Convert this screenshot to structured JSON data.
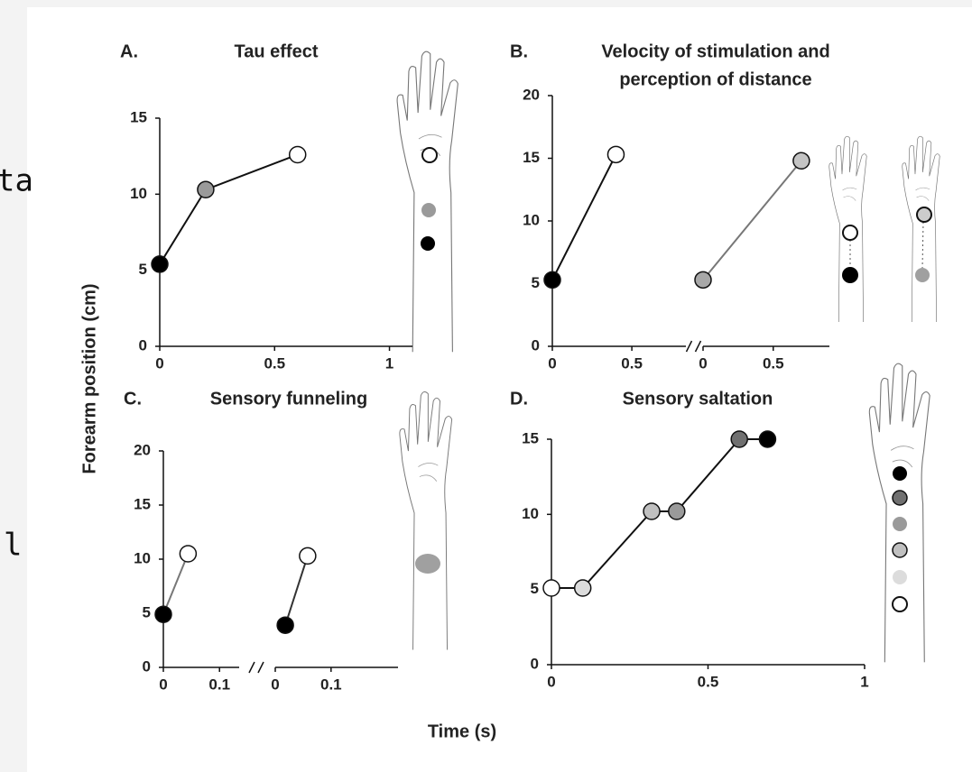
{
  "background_text": [
    "ta",
    "l"
  ],
  "shared": {
    "ylabel": "Forearm position (cm)",
    "xlabel": "Time (s)"
  },
  "chart_data": [
    {
      "type": "line",
      "label": "A.",
      "title": "Tau effect",
      "ylim": [
        0,
        15
      ],
      "yticks": [
        0,
        5,
        10,
        15
      ],
      "xlim": [
        0,
        1.1
      ],
      "xticks": [
        0,
        0.5,
        1
      ],
      "series": [
        {
          "color": "#111111",
          "x": [
            0,
            0.2,
            0.6
          ],
          "values": [
            5.4,
            10.3,
            12.6
          ],
          "marker_colors": [
            "#000000",
            "#9a9a9a",
            "#ffffff"
          ]
        }
      ]
    },
    {
      "type": "line",
      "label": "B.",
      "title_lines": [
        "Velocity of stimulation and",
        "perception of distance"
      ],
      "ylim": [
        0,
        20
      ],
      "yticks": [
        0,
        5,
        10,
        15,
        20
      ],
      "segments": [
        {
          "xlim": [
            0,
            0.84
          ],
          "xticks": [
            0,
            0.5
          ],
          "series": [
            {
              "color": "#111111",
              "x": [
                0,
                0.4
              ],
              "values": [
                5.3,
                15.3
              ],
              "marker_colors": [
                "#000000",
                "#ffffff"
              ]
            }
          ]
        },
        {
          "xlim": [
            0,
            0.9
          ],
          "xticks": [
            0,
            0.5
          ],
          "series": [
            {
              "color": "#777777",
              "x": [
                0,
                0.7
              ],
              "values": [
                5.3,
                14.8
              ],
              "marker_colors": [
                "#a8a8a8",
                "#c4c4c4"
              ]
            }
          ]
        }
      ]
    },
    {
      "type": "line",
      "label": "C.",
      "title": "Sensory funneling",
      "ylim": [
        0,
        20
      ],
      "yticks": [
        0,
        5,
        10,
        15,
        20
      ],
      "segments": [
        {
          "xlim": [
            0,
            0.135
          ],
          "xticks": [
            0,
            0.1
          ],
          "series": [
            {
              "color": "#777777",
              "x": [
                0,
                0.044
              ],
              "values": [
                4.9,
                10.5
              ],
              "marker_colors": [
                "#000000",
                "#ffffff"
              ]
            }
          ]
        },
        {
          "xlim": [
            0,
            0.22
          ],
          "xticks": [
            0,
            0.1
          ],
          "series": [
            {
              "color": "#333333",
              "x": [
                0.018,
                0.058
              ],
              "values": [
                3.9,
                10.3
              ],
              "marker_colors": [
                "#000000",
                "#ffffff"
              ]
            }
          ]
        }
      ]
    },
    {
      "type": "line",
      "label": "D.",
      "title": "Sensory saltation",
      "ylim": [
        0,
        15
      ],
      "yticks": [
        0,
        5,
        10,
        15
      ],
      "xlim": [
        0,
        1
      ],
      "xticks": [
        0,
        0.5,
        1
      ],
      "series": [
        {
          "color": "#111111",
          "x": [
            0,
            0.1,
            0.32,
            0.4,
            0.6,
            0.69
          ],
          "values": [
            5.1,
            5.1,
            10.2,
            10.2,
            15,
            15
          ],
          "marker_colors": [
            "#ffffff",
            "#dcdcdc",
            "#c0c0c0",
            "#9a9a9a",
            "#707070",
            "#000000"
          ]
        }
      ]
    }
  ]
}
